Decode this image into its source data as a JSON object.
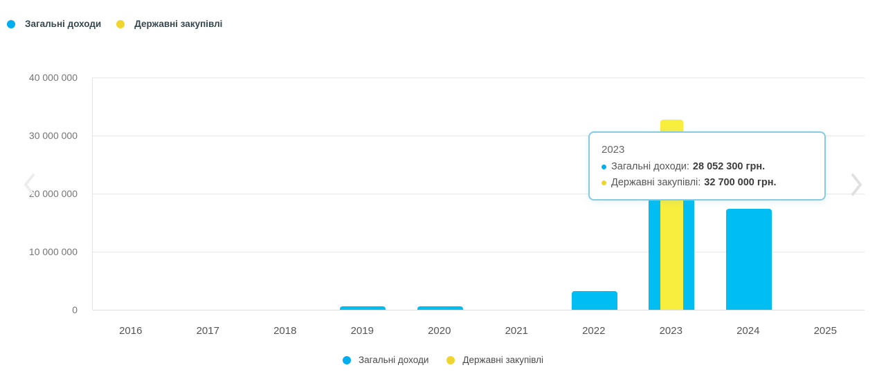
{
  "legend_top": {
    "items": [
      {
        "label": "Загальні доходи",
        "color": "#00AEEF"
      },
      {
        "label": "Державні закупівлі",
        "color": "#EFD52D"
      }
    ]
  },
  "legend_bottom": {
    "items": [
      {
        "label": "Загальні доходи",
        "color": "#00AEEF"
      },
      {
        "label": "Державні закупівлі",
        "color": "#EFD52D"
      }
    ]
  },
  "tooltip": {
    "title": "2023",
    "rows": [
      {
        "label": "Загальні доходи:",
        "value": "28 052 300 грн.",
        "color": "#00AEEF"
      },
      {
        "label": "Державні закупівлі:",
        "value": "32 700 000 грн.",
        "color": "#EFD52D"
      }
    ]
  },
  "chart_data": {
    "type": "bar",
    "categories": [
      "2016",
      "2017",
      "2018",
      "2019",
      "2020",
      "2021",
      "2022",
      "2023",
      "2024",
      "2025"
    ],
    "series": [
      {
        "name": "Загальні доходи",
        "color": "#00BDF2",
        "values": [
          0,
          0,
          0,
          600000,
          600000,
          0,
          3200000,
          28052300,
          17400000,
          0
        ]
      },
      {
        "name": "Державні закупівлі",
        "color": "#F8EE3D",
        "values": [
          0,
          0,
          0,
          0,
          0,
          0,
          0,
          32700000,
          0,
          0
        ]
      }
    ],
    "ylim": [
      0,
      40000000
    ],
    "yticks": [
      {
        "value": 0,
        "label": "0"
      },
      {
        "value": 10000000,
        "label": "10 000 000"
      },
      {
        "value": 20000000,
        "label": "20 000 000"
      },
      {
        "value": 30000000,
        "label": "30 000 000"
      },
      {
        "value": 40000000,
        "label": "40 000 000"
      }
    ],
    "grid": "horizontal",
    "legend_position": "top-and-bottom",
    "unit": "грн."
  }
}
